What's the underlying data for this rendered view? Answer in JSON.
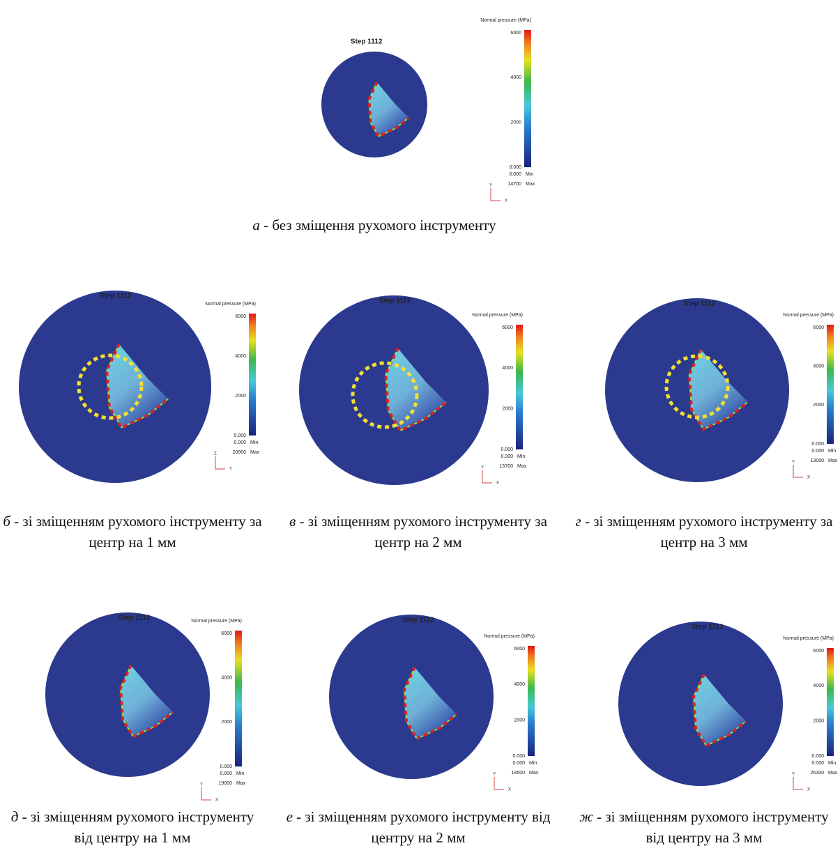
{
  "panels": [
    {
      "step": "Step 1112",
      "legend_title": "Normal pressure (MPa)",
      "scale_ticks": [
        "6000",
        "4000",
        "2000",
        "0.000"
      ],
      "min_value": "0.000",
      "min_label": "Min",
      "max_value": "14700",
      "max_label": "Max",
      "axes": [
        "Y",
        "X"
      ],
      "caption_letter": "а",
      "caption": "- без зміщення рухомого інструменту"
    },
    {
      "step": "Step 1112",
      "legend_title": "Normal pressure (MPa)",
      "scale_ticks": [
        "6000",
        "4000",
        "2000",
        "0.000"
      ],
      "min_value": "0.000",
      "min_label": "Min",
      "max_value": "20900",
      "max_label": "Max",
      "axes": [
        "Z",
        "Y"
      ],
      "caption_letter": "б",
      "caption": "- зі зміщенням рухомого інструменту за центр на 1 мм"
    },
    {
      "step": "Step 1112",
      "legend_title": "Normal pressure (MPa)",
      "scale_ticks": [
        "6000",
        "4000",
        "2000",
        "0.000"
      ],
      "min_value": "0.000",
      "min_label": "Min",
      "max_value": "15700",
      "max_label": "Max",
      "axes": [
        "Y",
        "X"
      ],
      "caption_letter": "в",
      "caption": "- зі зміщенням рухомого інструменту за центр на 2 мм"
    },
    {
      "step": "Step 1112",
      "legend_title": "Normal pressure (MPa)",
      "scale_ticks": [
        "6000",
        "4000",
        "2000",
        "0.000"
      ],
      "min_value": "0.000",
      "min_label": "Min",
      "max_value": "13000",
      "max_label": "Max",
      "axes": [
        "Y",
        "X"
      ],
      "caption_letter": "г",
      "caption": "- зі зміщенням рухомого інструменту за центр на 3 мм"
    },
    {
      "step": "Step 1112",
      "legend_title": "Normal pressure (MPa)",
      "scale_ticks": [
        "6000",
        "4000",
        "2000",
        "0.000"
      ],
      "min_value": "0.000",
      "min_label": "Min",
      "max_value": "19000",
      "max_label": "Max",
      "axes": [
        "Y",
        "X"
      ],
      "caption_letter": "д",
      "caption": "- зі зміщенням рухомого інструменту від центру на 1 мм"
    },
    {
      "step": "Step 1112",
      "legend_title": "Normal pressure (MPa)",
      "scale_ticks": [
        "6000",
        "4000",
        "2000",
        "0.000"
      ],
      "min_value": "0.000",
      "min_label": "Min",
      "max_value": "18500",
      "max_label": "Max",
      "axes": [
        "Y",
        "X"
      ],
      "caption_letter": "е",
      "caption": "- зі зміщенням рухомого інструменту від центру на 2 мм"
    },
    {
      "step": "Step 1112",
      "legend_title": "Normal pressure (MPa)",
      "scale_ticks": [
        "6000",
        "4000",
        "2000",
        "0.000"
      ],
      "min_value": "0.000",
      "min_label": "Min",
      "max_value": "26300",
      "max_label": "Max",
      "axes": [
        "Y",
        "X"
      ],
      "caption_letter": "ж",
      "caption": "- зі зміщенням рухомого інструменту від центру на 3 мм"
    }
  ]
}
